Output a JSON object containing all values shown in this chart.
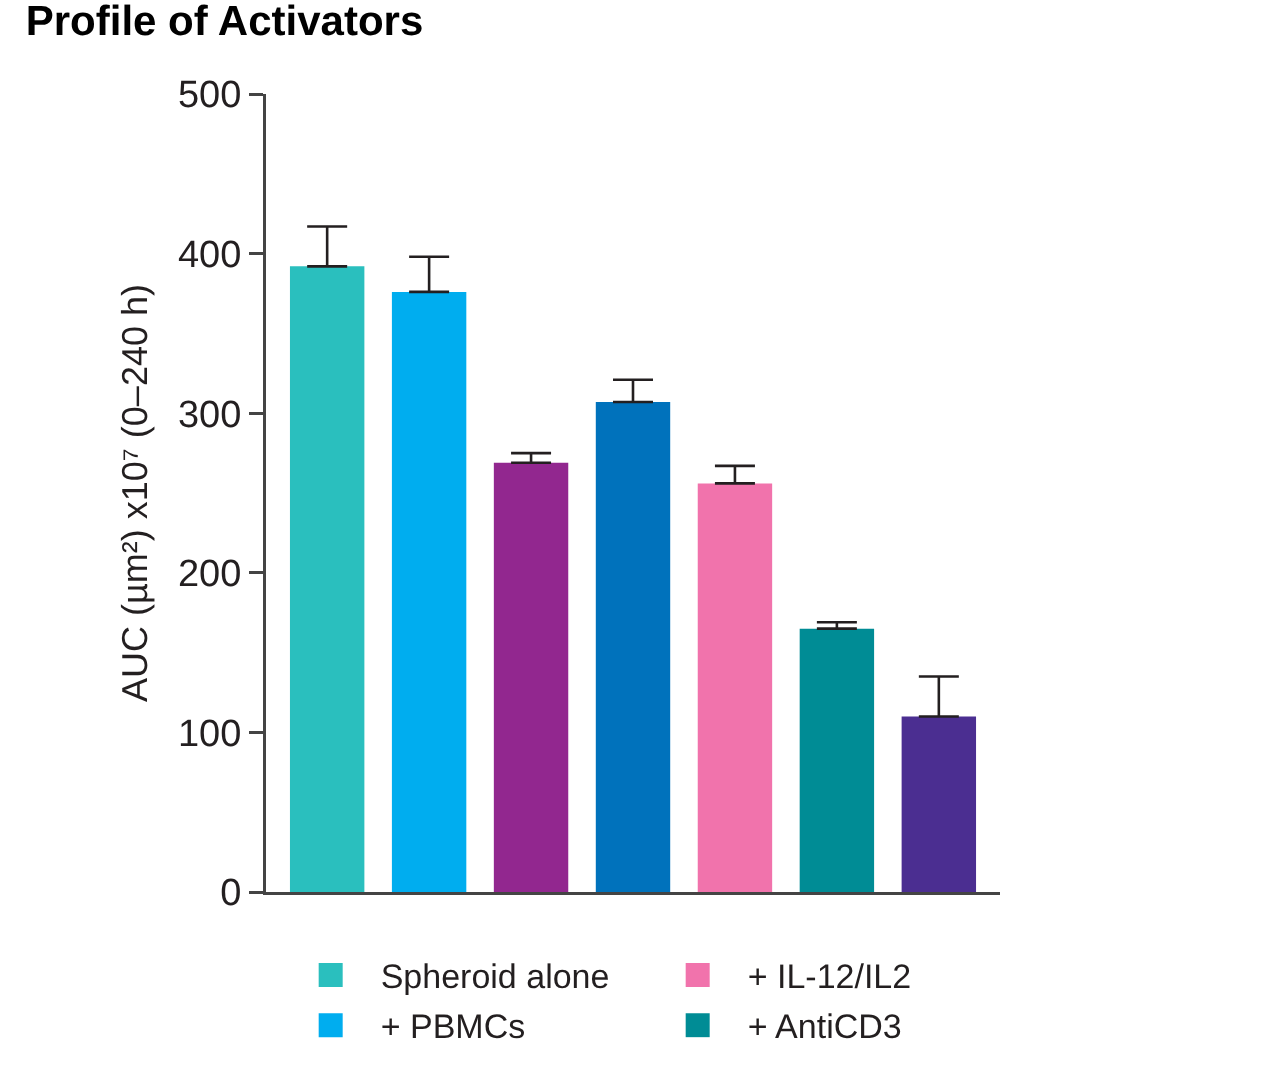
{
  "chart_data": {
    "type": "bar",
    "title": "Profile of Activators",
    "ylabel": "AUC (µm²) x10⁷ (0–240 h)",
    "categories": [
      null,
      null,
      null,
      null,
      null,
      null,
      null
    ],
    "series": [
      {
        "name": "Spheroid alone",
        "color": "#2abfbe",
        "values": [
          392,
          null,
          null,
          null,
          null,
          null,
          null
        ],
        "errors": [
          [
            392,
            417
          ],
          null,
          null,
          null,
          null,
          null,
          null
        ]
      },
      {
        "name": "+ PBMCs",
        "color": "#00adef",
        "values": [
          null,
          376,
          null,
          null,
          null,
          null,
          null
        ],
        "errors": [
          null,
          [
            376,
            398
          ],
          null,
          null,
          null,
          null,
          null
        ]
      },
      {
        "color": "#92278f",
        "values": [
          null,
          null,
          269,
          null,
          null,
          null,
          null
        ],
        "errors": [
          null,
          null,
          [
            269,
            275
          ],
          null,
          null,
          null,
          null
        ]
      },
      {
        "color": "#0072bc",
        "values": [
          null,
          null,
          null,
          307,
          null,
          null,
          null
        ],
        "errors": [
          null,
          null,
          null,
          [
            307,
            321
          ],
          null,
          null,
          null
        ]
      },
      {
        "name": "+ IL-12/IL2",
        "color": "#f173ac",
        "values": [
          null,
          null,
          null,
          null,
          256,
          null,
          null
        ],
        "errors": [
          null,
          null,
          null,
          null,
          [
            256,
            267
          ],
          null,
          null
        ]
      },
      {
        "name": "+ AntiCD3",
        "color": "#008c95",
        "values": [
          null,
          null,
          null,
          null,
          null,
          165,
          null
        ],
        "errors": [
          null,
          null,
          null,
          null,
          null,
          [
            165,
            169
          ],
          null
        ]
      },
      {
        "color": "#4b2e91",
        "values": [
          null,
          null,
          null,
          null,
          null,
          null,
          110
        ],
        "errors": [
          null,
          null,
          null,
          null,
          null,
          null,
          [
            110,
            135
          ]
        ]
      }
    ],
    "ylim": [
      0,
      500
    ],
    "yticks": [
      0,
      100,
      200,
      300,
      400,
      500
    ],
    "grid": false,
    "legend": "bottom"
  }
}
